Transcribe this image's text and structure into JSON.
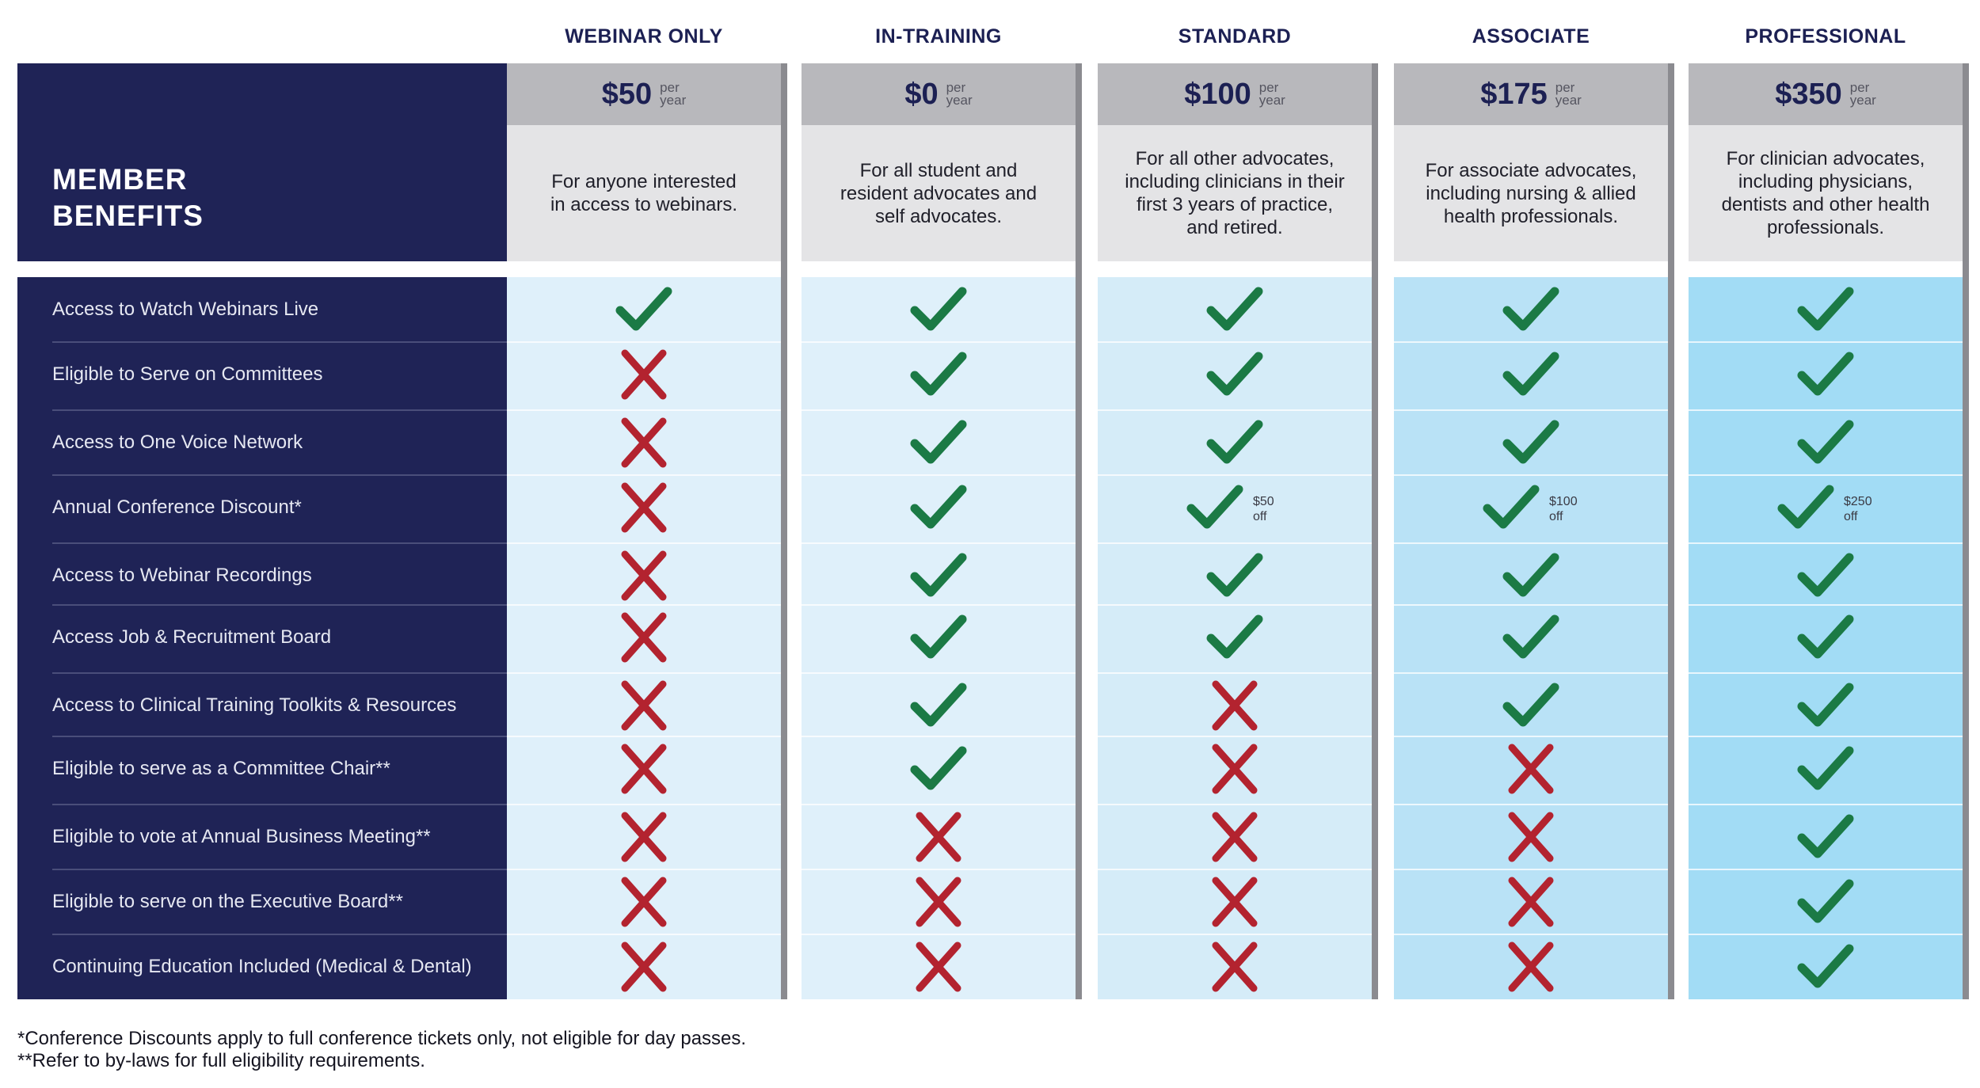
{
  "header": {
    "title_line1": "MEMBER",
    "title_line2": "BENEFITS"
  },
  "plans": [
    {
      "name": "WEBINAR ONLY",
      "price": "$50",
      "per_line1": "per",
      "per_line2": "year",
      "description_lines": [
        "For anyone interested",
        "in access to webinars."
      ],
      "color": "#dff0fa"
    },
    {
      "name": "IN-TRAINING",
      "price": "$0",
      "per_line1": "per",
      "per_line2": "year",
      "description_lines": [
        "For all student and",
        "resident advocates and",
        "self advocates."
      ],
      "color": "#dff0fa"
    },
    {
      "name": "STANDARD",
      "price": "$100",
      "per_line1": "per",
      "per_line2": "year",
      "description_lines": [
        "For all other advocates,",
        "including clinicians in their",
        "first 3 years of practice,",
        "and retired."
      ],
      "color": "#d5ecf8"
    },
    {
      "name": "ASSOCIATE",
      "price": "$175",
      "per_line1": "per",
      "per_line2": "year",
      "description_lines": [
        "For associate advocates,",
        "including nursing & allied",
        "health professionals."
      ],
      "color": "#b9e2f6"
    },
    {
      "name": "PROFESSIONAL",
      "price": "$350",
      "per_line1": "per",
      "per_line2": "year",
      "description_lines": [
        "For clinician advocates,",
        "including physicians,",
        "dentists and other health",
        "professionals."
      ],
      "color": "#a2dcf5"
    }
  ],
  "benefits": [
    {
      "label": "Access to Watch Webinars Live",
      "marks": [
        "check",
        "check",
        "check",
        "check",
        "check"
      ]
    },
    {
      "label": "Eligible to Serve on Committees",
      "marks": [
        "cross",
        "check",
        "check",
        "check",
        "check"
      ]
    },
    {
      "label": "Access to One Voice Network",
      "marks": [
        "cross",
        "check",
        "check",
        "check",
        "check"
      ]
    },
    {
      "label": "Annual Conference Discount*",
      "marks": [
        "cross",
        "check",
        "check",
        "check",
        "check"
      ],
      "notes": [
        null,
        null,
        [
          "$50",
          "off"
        ],
        [
          "$100",
          "off"
        ],
        [
          "$250",
          "off"
        ]
      ]
    },
    {
      "label": "Access to Webinar Recordings",
      "marks": [
        "cross",
        "check",
        "check",
        "check",
        "check"
      ]
    },
    {
      "label": "Access Job & Recruitment Board",
      "marks": [
        "cross",
        "check",
        "check",
        "check",
        "check"
      ]
    },
    {
      "label": "Access to Clinical Training Toolkits & Resources",
      "marks": [
        "cross",
        "check",
        "cross",
        "check",
        "check"
      ]
    },
    {
      "label": "Eligible to serve as a Committee Chair**",
      "marks": [
        "cross",
        "check",
        "cross",
        "cross",
        "check"
      ]
    },
    {
      "label": "Eligible to vote at Annual Business Meeting**",
      "marks": [
        "cross",
        "cross",
        "cross",
        "cross",
        "check"
      ]
    },
    {
      "label": "Eligible to serve on the Executive Board**",
      "marks": [
        "cross",
        "cross",
        "cross",
        "cross",
        "check"
      ]
    },
    {
      "label": "Continuing Education Included (Medical & Dental)",
      "marks": [
        "cross",
        "cross",
        "cross",
        "cross",
        "check"
      ]
    }
  ],
  "colors": {
    "navy": "#1f2356",
    "check": "#1b7a45",
    "cross": "#b3232f",
    "price_band": "#b8b8bc",
    "desc_band": "#e4e4e6"
  },
  "footnotes": [
    "*Conference Discounts apply to full conference tickets only, not eligible for day passes.",
    "**Refer to by-laws for full eligibility requirements."
  ]
}
